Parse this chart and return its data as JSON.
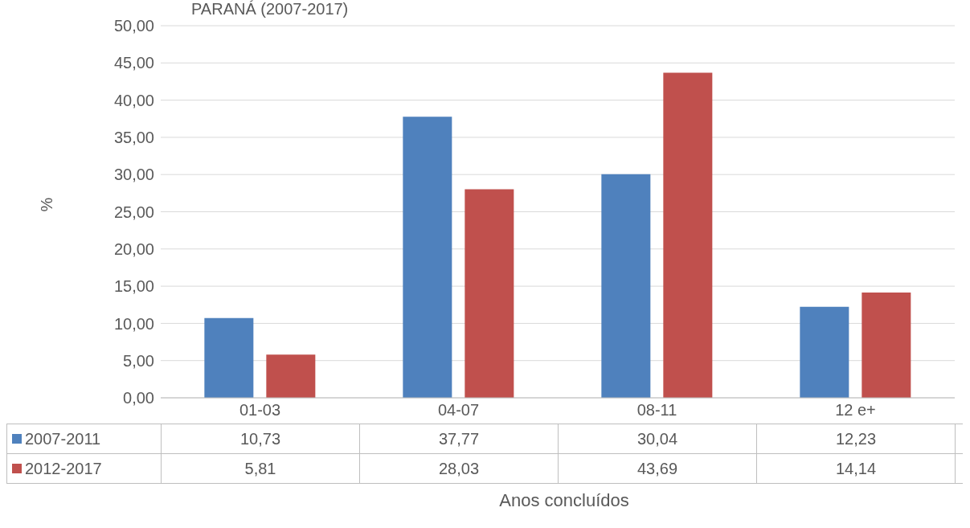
{
  "chart_data": {
    "type": "bar",
    "title": "PARANÁ (2007-2017)",
    "xlabel": "Anos concluídos",
    "ylabel": "%",
    "categories": [
      "01-03",
      "04-07",
      "08-11",
      "12 e+"
    ],
    "series": [
      {
        "name": "2007-2011",
        "color": "#4f81bd",
        "values": [
          10.73,
          37.77,
          30.04,
          12.23
        ],
        "value_labels": [
          "10,73",
          "37,77",
          "30,04",
          "12,23"
        ]
      },
      {
        "name": "2012-2017",
        "color": "#c0504d",
        "values": [
          5.81,
          28.03,
          43.69,
          14.14
        ],
        "value_labels": [
          "5,81",
          "28,03",
          "43,69",
          "14,14"
        ]
      }
    ],
    "ylim": [
      0,
      50
    ],
    "yticks": [
      {
        "value": 0,
        "label": "0,00"
      },
      {
        "value": 5,
        "label": "5,00"
      },
      {
        "value": 10,
        "label": "10,00"
      },
      {
        "value": 15,
        "label": "15,00"
      },
      {
        "value": 20,
        "label": "20,00"
      },
      {
        "value": 25,
        "label": "25,00"
      },
      {
        "value": 30,
        "label": "30,00"
      },
      {
        "value": 35,
        "label": "35,00"
      },
      {
        "value": 40,
        "label": "40,00"
      },
      {
        "value": 45,
        "label": "45,00"
      },
      {
        "value": 50,
        "label": "50,00"
      }
    ],
    "grid": "y",
    "legend": "bottom"
  }
}
